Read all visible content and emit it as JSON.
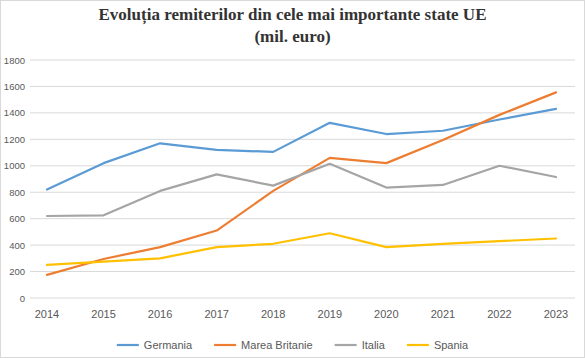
{
  "chart_data": {
    "type": "line",
    "title": "Evoluția remiterilor din cele mai importante state UE",
    "subtitle": "(mil. euro)",
    "categories": [
      "2014",
      "2015",
      "2016",
      "2017",
      "2018",
      "2019",
      "2020",
      "2021",
      "2022",
      "2023"
    ],
    "series": [
      {
        "name": "Germania",
        "color": "#5b9bd5",
        "values": [
          820,
          1020,
          1170,
          1120,
          1105,
          1325,
          1240,
          1265,
          1350,
          1430
        ]
      },
      {
        "name": "Marea Britanie",
        "color": "#ed7d31",
        "values": [
          175,
          295,
          385,
          510,
          810,
          1060,
          1020,
          1195,
          1385,
          1555
        ]
      },
      {
        "name": "Italia",
        "color": "#a5a5a5",
        "values": [
          620,
          625,
          810,
          935,
          850,
          1015,
          835,
          855,
          1000,
          915
        ]
      },
      {
        "name": "Spania",
        "color": "#ffc000",
        "values": [
          250,
          275,
          300,
          385,
          410,
          490,
          385,
          410,
          430,
          450
        ]
      }
    ],
    "ylim": [
      0,
      1800
    ],
    "yticks": [
      0,
      200,
      400,
      600,
      800,
      1000,
      1200,
      1400,
      1600,
      1800
    ],
    "grid": true,
    "legend": "bottom"
  }
}
